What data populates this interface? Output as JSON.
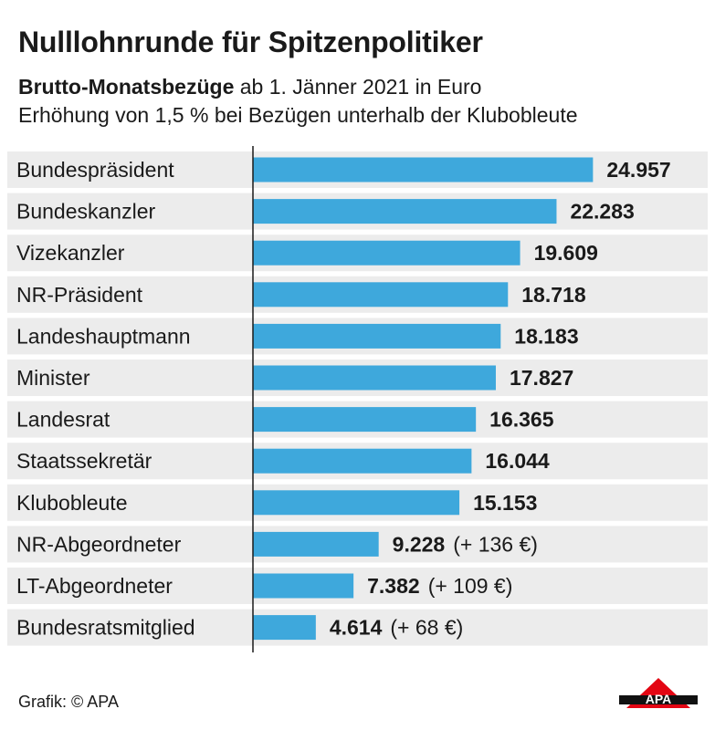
{
  "title": "Nulllohnrunde für Spitzenpolitiker",
  "subtitle": {
    "line1_bold": "Brutto-Monatsbezüge",
    "line1_rest": " ab 1. Jänner 2021 in Euro",
    "line2": "Erhöhung von 1,5 % bei Bezügen unterhalb der Klubobleute"
  },
  "chart_data": {
    "type": "bar",
    "orientation": "horizontal",
    "categories": [
      "Bundespräsident",
      "Bundeskanzler",
      "Vizekanzler",
      "NR-Präsident",
      "Landeshauptmann",
      "Minister",
      "Landesrat",
      "Staatssekretär",
      "Klubobleute",
      "NR-Abgeordneter",
      "LT-Abgeordneter",
      "Bundesratsmitglied"
    ],
    "values": [
      24957,
      22283,
      19609,
      18718,
      18183,
      17827,
      16365,
      16044,
      15153,
      9228,
      7382,
      4614
    ],
    "value_labels": [
      "24.957",
      "22.283",
      "19.609",
      "18.718",
      "18.183",
      "17.827",
      "16.365",
      "16.044",
      "15.153",
      "9.228",
      "7.382",
      "4.614"
    ],
    "annotations": [
      "",
      "",
      "",
      "",
      "",
      "",
      "",
      "",
      "",
      "(+ 136 €)",
      "(+ 109 €)",
      "(+ 68 €)"
    ],
    "bar_color": "#3ea8dc",
    "row_stripe_color": "#ececec",
    "xlim": [
      0,
      25000
    ],
    "grid": false
  },
  "footer": {
    "credit": "Grafik: © APA"
  },
  "logo": {
    "text": "APA",
    "color": "#e30613"
  }
}
